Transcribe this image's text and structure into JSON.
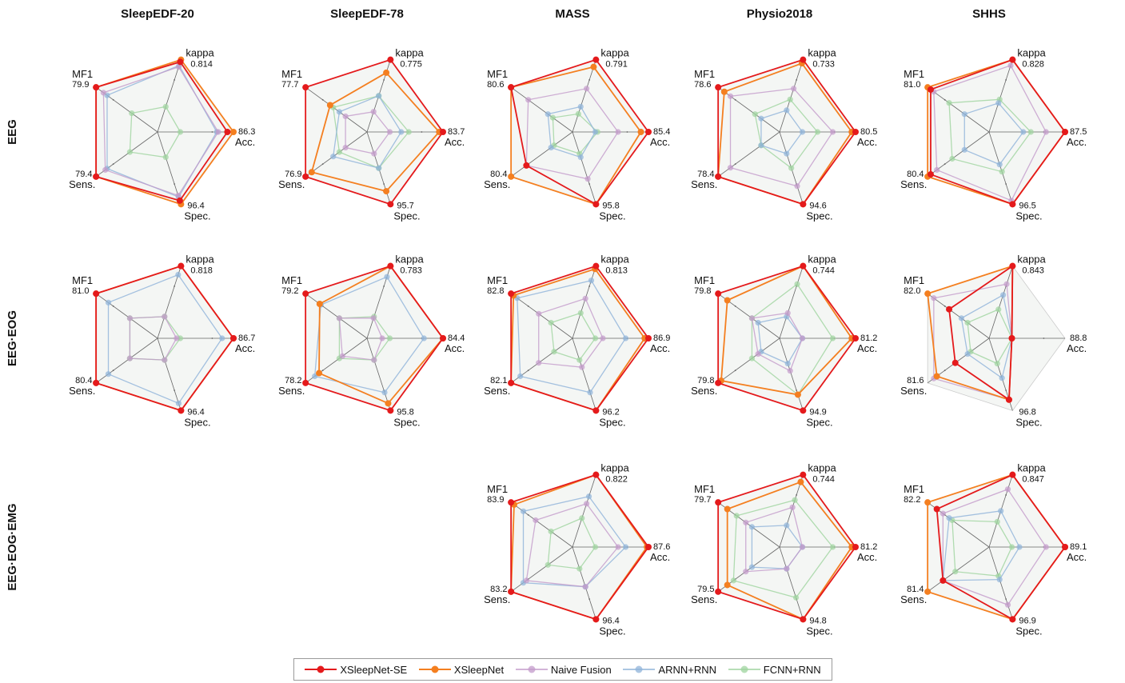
{
  "columns": [
    "SleepEDF-20",
    "SleepEDF-78",
    "MASS",
    "Physio2018",
    "SHHS"
  ],
  "rows": [
    "EEG",
    "EEG·EOG",
    "EEG·EOG·EMG"
  ],
  "axes": [
    "kappa",
    "Acc.",
    "Spec.",
    "Sens.",
    "MF1"
  ],
  "legend": [
    {
      "name": "XSleepNet-SE",
      "color": "#e41a1c"
    },
    {
      "name": "XSleepNet",
      "color": "#f47f20"
    },
    {
      "name": "Naive Fusion",
      "color": "#c39bcb"
    },
    {
      "name": "ARNN+RNN",
      "color": "#8fb3d9"
    },
    {
      "name": "FCNN+RNN",
      "color": "#9fd49f"
    }
  ],
  "chart_data": {
    "type": "radar",
    "note_series_order": "XSleepNet-SE, XSleepNet, Naive Fusion, ARNN+RNN, FCNN+RNN",
    "panels": [
      {
        "column": "SleepEDF-20",
        "row": "EEG",
        "axis_labels": {
          "kappa": "0.814",
          "Acc.": "86.3",
          "Spec.": "96.4",
          "Sens.": "79.4",
          "MF1": "79.9"
        },
        "series": [
          [
            0.97,
            0.92,
            0.95,
            1.0,
            1.0
          ],
          [
            1.0,
            1.0,
            1.0,
            1.0,
            1.0
          ],
          [
            0.9,
            0.8,
            0.88,
            0.85,
            0.88
          ],
          [
            0.92,
            0.78,
            0.9,
            0.82,
            0.82
          ],
          [
            0.35,
            0.3,
            0.35,
            0.45,
            0.42
          ]
        ]
      },
      {
        "column": "SleepEDF-78",
        "row": "EEG",
        "axis_labels": {
          "kappa": "0.775",
          "Acc.": "83.7",
          "Spec.": "95.7",
          "Sens.": "76.9",
          "MF1": "77.7"
        },
        "series": [
          [
            1.0,
            1.0,
            1.0,
            1.0,
            1.0
          ],
          [
            0.82,
            0.95,
            0.82,
            0.9,
            0.6
          ],
          [
            0.28,
            0.3,
            0.3,
            0.35,
            0.35
          ],
          [
            0.5,
            0.45,
            0.5,
            0.55,
            0.45
          ],
          [
            0.5,
            0.55,
            0.5,
            0.45,
            0.55
          ]
        ]
      },
      {
        "column": "MASS",
        "row": "EEG",
        "axis_labels": {
          "kappa": "0.791",
          "Acc.": "85.4",
          "Spec.": "95.8",
          "Sens.": "80.4",
          "MF1": "80.6"
        },
        "series": [
          [
            1.0,
            1.0,
            1.0,
            0.75,
            1.0
          ],
          [
            0.9,
            0.9,
            1.0,
            1.0,
            1.0
          ],
          [
            0.6,
            0.6,
            0.65,
            0.75,
            0.72
          ],
          [
            0.35,
            0.3,
            0.35,
            0.35,
            0.4
          ],
          [
            0.25,
            0.33,
            0.3,
            0.3,
            0.32
          ]
        ]
      },
      {
        "column": "Physio2018",
        "row": "EEG",
        "axis_labels": {
          "kappa": "0.733",
          "Acc.": "80.5",
          "Spec.": "94.6",
          "Sens.": "78.4",
          "MF1": "78.6"
        },
        "series": [
          [
            1.0,
            1.0,
            1.0,
            1.0,
            1.0
          ],
          [
            0.95,
            0.95,
            1.0,
            1.0,
            0.9
          ],
          [
            0.6,
            0.7,
            0.75,
            0.8,
            0.8
          ],
          [
            0.3,
            0.3,
            0.3,
            0.3,
            0.3
          ],
          [
            0.45,
            0.5,
            0.5,
            0.3,
            0.4
          ]
        ]
      },
      {
        "column": "SHHS",
        "row": "EEG",
        "axis_labels": {
          "kappa": "0.828",
          "Acc.": "87.5",
          "Spec.": "96.5",
          "Sens.": "80.4",
          "MF1": "81.0"
        },
        "series": [
          [
            1.0,
            1.0,
            1.0,
            0.95,
            0.95
          ],
          [
            1.0,
            1.0,
            1.0,
            1.0,
            1.0
          ],
          [
            0.92,
            0.75,
            0.95,
            0.85,
            0.9
          ],
          [
            0.4,
            0.45,
            0.45,
            0.4,
            0.4
          ],
          [
            0.45,
            0.55,
            0.55,
            0.6,
            0.65
          ]
        ]
      },
      {
        "column": "SleepEDF-20",
        "row": "EEG·EOG",
        "axis_labels": {
          "kappa": "0.818",
          "Acc.": "86.7",
          "Spec.": "96.4",
          "Sens.": "80.4",
          "MF1": "81.0"
        },
        "series": [
          [
            1.0,
            1.0,
            1.0,
            1.0,
            1.0
          ],
          [
            1.0,
            1.0,
            1.0,
            1.0,
            1.0
          ],
          [
            0.3,
            0.25,
            0.3,
            0.45,
            0.45
          ],
          [
            0.88,
            0.85,
            0.9,
            0.8,
            0.8
          ],
          [
            0.3,
            0.3,
            0.3,
            0.45,
            0.45
          ]
        ]
      },
      {
        "column": "SleepEDF-78",
        "row": "EEG·EOG",
        "axis_labels": {
          "kappa": "0.783",
          "Acc.": "84.4",
          "Spec.": "95.8",
          "Sens.": "78.2",
          "MF1": "79.2"
        },
        "series": [
          [
            1.0,
            1.0,
            1.0,
            1.0,
            1.0
          ],
          [
            1.0,
            1.0,
            0.9,
            0.78,
            0.77
          ],
          [
            0.28,
            0.2,
            0.3,
            0.4,
            0.45
          ],
          [
            0.85,
            0.75,
            0.75,
            0.85,
            0.75
          ],
          [
            0.3,
            0.3,
            0.3,
            0.45,
            0.45
          ]
        ]
      },
      {
        "column": "MASS",
        "row": "EEG·EOG",
        "axis_labels": {
          "kappa": "0.813",
          "Acc.": "86.9",
          "Spec.": "96.2",
          "Sens.": "82.1",
          "MF1": "82.8"
        },
        "series": [
          [
            1.0,
            1.0,
            1.0,
            1.0,
            1.0
          ],
          [
            0.96,
            0.95,
            1.0,
            1.0,
            0.96
          ],
          [
            0.55,
            0.4,
            0.4,
            0.55,
            0.55
          ],
          [
            0.8,
            0.7,
            0.75,
            0.85,
            0.9
          ],
          [
            0.35,
            0.3,
            0.3,
            0.3,
            0.35
          ]
        ]
      },
      {
        "column": "Physio2018",
        "row": "EEG·EOG",
        "axis_labels": {
          "kappa": "0.744",
          "Acc.": "81.2",
          "Spec.": "94.9",
          "Sens.": "79.8",
          "MF1": "79.8"
        },
        "series": [
          [
            1.0,
            1.0,
            1.0,
            1.0,
            1.0
          ],
          [
            1.0,
            0.95,
            0.78,
            0.95,
            0.85
          ],
          [
            0.35,
            0.3,
            0.45,
            0.35,
            0.45
          ],
          [
            0.3,
            0.3,
            0.35,
            0.3,
            0.35
          ],
          [
            0.75,
            0.7,
            0.78,
            0.45,
            0.45
          ]
        ]
      },
      {
        "column": "SHHS",
        "row": "EEG·EOG",
        "axis_labels": {
          "kappa": "0.843",
          "Acc.": "88.8",
          "Spec.": "96.8",
          "Sens.": "81.6",
          "MF1": "82.0"
        },
        "series": [
          [
            1.0,
            0.3,
            0.85,
            0.55,
            0.65
          ],
          [
            1.0,
            0.3,
            0.85,
            0.85,
            1.0
          ],
          [
            0.75,
            0.3,
            0.85,
            0.9,
            0.9
          ],
          [
            0.6,
            0.3,
            0.55,
            0.35,
            0.45
          ],
          [
            0.4,
            0.3,
            0.35,
            0.3,
            0.35
          ]
        ]
      },
      {
        "column": "MASS",
        "row": "EEG·EOG·EMG",
        "axis_labels": {
          "kappa": "0.822",
          "Acc.": "87.6",
          "Spec.": "96.4",
          "Sens.": "83.2",
          "MF1": "83.9"
        },
        "series": [
          [
            1.0,
            1.0,
            1.0,
            1.0,
            1.0
          ],
          [
            1.0,
            0.98,
            1.0,
            1.0,
            0.95
          ],
          [
            0.6,
            0.6,
            0.55,
            0.75,
            0.6
          ],
          [
            0.7,
            0.7,
            0.55,
            0.8,
            0.8
          ],
          [
            0.4,
            0.3,
            0.3,
            0.4,
            0.35
          ]
        ]
      },
      {
        "column": "Physio2018",
        "row": "EEG·EOG·EMG",
        "axis_labels": {
          "kappa": "0.744",
          "Acc.": "81.2",
          "Spec.": "94.8",
          "Sens.": "79.5",
          "MF1": "79.7"
        },
        "series": [
          [
            1.0,
            1.0,
            1.0,
            1.0,
            1.0
          ],
          [
            0.9,
            0.95,
            1.0,
            0.85,
            0.85
          ],
          [
            0.55,
            0.3,
            0.3,
            0.55,
            0.55
          ],
          [
            0.3,
            0.3,
            0.3,
            0.45,
            0.45
          ],
          [
            0.65,
            0.7,
            0.7,
            0.75,
            0.7
          ]
        ]
      },
      {
        "column": "SHHS",
        "row": "EEG·EOG·EMG",
        "axis_labels": {
          "kappa": "0.847",
          "Acc.": "89.1",
          "Spec.": "96.9",
          "Sens.": "81.4",
          "MF1": "82.2"
        },
        "series": [
          [
            1.0,
            1.0,
            1.0,
            0.75,
            0.85
          ],
          [
            1.0,
            1.0,
            1.0,
            1.0,
            1.0
          ],
          [
            0.8,
            0.75,
            0.8,
            0.75,
            0.75
          ],
          [
            0.5,
            0.4,
            0.45,
            0.75,
            0.65
          ],
          [
            0.35,
            0.3,
            0.4,
            0.55,
            0.6
          ]
        ]
      }
    ]
  }
}
